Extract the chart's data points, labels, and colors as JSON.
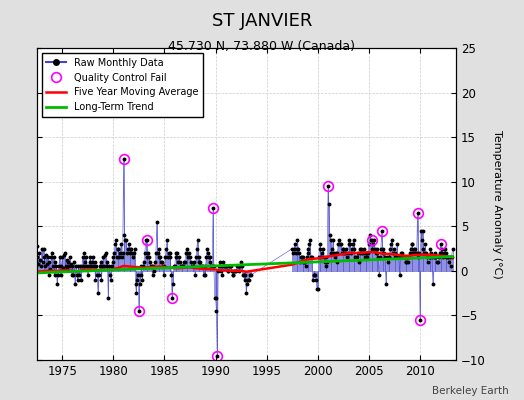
{
  "title": "ST JANVIER",
  "subtitle": "45.730 N, 73.880 W (Canada)",
  "ylabel": "Temperature Anomaly (°C)",
  "credit": "Berkeley Earth",
  "xlim": [
    1972.5,
    2013.5
  ],
  "ylim": [
    -10,
    25
  ],
  "yticks_left": [
    -10,
    -5,
    0,
    5,
    10,
    15,
    20,
    25
  ],
  "yticks_right": [
    -10,
    -5,
    0,
    5,
    10,
    15,
    20,
    25
  ],
  "xticks": [
    1975,
    1980,
    1985,
    1990,
    1995,
    2000,
    2005,
    2010
  ],
  "background_color": "#e0e0e0",
  "plot_bg_color": "#ffffff",
  "raw_color": "#4444cc",
  "raw_marker_color": "#000000",
  "qc_color": "#ff00ff",
  "ma_color": "#ff0000",
  "trend_color": "#00bb00",
  "grid_color": "#cccccc",
  "raw_monthly": [
    [
      1972.08,
      0.3
    ],
    [
      1972.17,
      1.8
    ],
    [
      1972.25,
      0.5
    ],
    [
      1972.33,
      2.2
    ],
    [
      1972.42,
      1.0
    ],
    [
      1972.5,
      2.8
    ],
    [
      1972.58,
      1.5
    ],
    [
      1972.67,
      0.8
    ],
    [
      1972.75,
      2.0
    ],
    [
      1972.83,
      1.2
    ],
    [
      1972.92,
      0.5
    ],
    [
      1973.0,
      2.5
    ],
    [
      1973.08,
      1.0
    ],
    [
      1973.17,
      2.5
    ],
    [
      1973.25,
      1.5
    ],
    [
      1973.33,
      0.5
    ],
    [
      1973.42,
      1.8
    ],
    [
      1973.5,
      0.8
    ],
    [
      1973.58,
      1.5
    ],
    [
      1973.67,
      -0.5
    ],
    [
      1973.75,
      1.0
    ],
    [
      1973.83,
      0.2
    ],
    [
      1973.92,
      1.5
    ],
    [
      1974.0,
      2.0
    ],
    [
      1974.08,
      0.5
    ],
    [
      1974.17,
      1.5
    ],
    [
      1974.25,
      -0.5
    ],
    [
      1974.33,
      1.0
    ],
    [
      1974.42,
      0.5
    ],
    [
      1974.5,
      -1.5
    ],
    [
      1974.58,
      -0.5
    ],
    [
      1974.67,
      0.5
    ],
    [
      1974.75,
      1.5
    ],
    [
      1974.83,
      -0.5
    ],
    [
      1974.92,
      0.5
    ],
    [
      1975.0,
      1.5
    ],
    [
      1975.08,
      0.3
    ],
    [
      1975.17,
      1.8
    ],
    [
      1975.25,
      2.0
    ],
    [
      1975.33,
      0.5
    ],
    [
      1975.42,
      1.2
    ],
    [
      1975.5,
      0.2
    ],
    [
      1975.58,
      1.0
    ],
    [
      1975.67,
      0.5
    ],
    [
      1975.75,
      1.5
    ],
    [
      1975.83,
      0.8
    ],
    [
      1975.92,
      -0.5
    ],
    [
      1976.0,
      0.5
    ],
    [
      1976.08,
      -0.5
    ],
    [
      1976.17,
      1.0
    ],
    [
      1976.25,
      -1.5
    ],
    [
      1976.33,
      0.5
    ],
    [
      1976.42,
      -0.5
    ],
    [
      1976.5,
      -1.0
    ],
    [
      1976.58,
      0.5
    ],
    [
      1976.67,
      -0.5
    ],
    [
      1976.75,
      0.5
    ],
    [
      1976.83,
      -1.0
    ],
    [
      1976.92,
      0.5
    ],
    [
      1977.0,
      1.5
    ],
    [
      1977.08,
      0.5
    ],
    [
      1977.17,
      2.0
    ],
    [
      1977.25,
      1.0
    ],
    [
      1977.33,
      1.5
    ],
    [
      1977.42,
      0.5
    ],
    [
      1977.5,
      -0.5
    ],
    [
      1977.58,
      0.5
    ],
    [
      1977.67,
      1.0
    ],
    [
      1977.75,
      1.5
    ],
    [
      1977.83,
      0.5
    ],
    [
      1977.92,
      1.0
    ],
    [
      1978.0,
      1.5
    ],
    [
      1978.08,
      0.5
    ],
    [
      1978.17,
      1.0
    ],
    [
      1978.25,
      -1.0
    ],
    [
      1978.33,
      0.5
    ],
    [
      1978.42,
      -0.5
    ],
    [
      1978.5,
      -2.5
    ],
    [
      1978.58,
      -0.5
    ],
    [
      1978.67,
      0.5
    ],
    [
      1978.75,
      1.0
    ],
    [
      1978.83,
      -1.0
    ],
    [
      1978.92,
      0.5
    ],
    [
      1979.0,
      1.5
    ],
    [
      1979.08,
      0.5
    ],
    [
      1979.17,
      1.8
    ],
    [
      1979.25,
      2.0
    ],
    [
      1979.33,
      0.5
    ],
    [
      1979.42,
      1.0
    ],
    [
      1979.5,
      -3.0
    ],
    [
      1979.58,
      0.5
    ],
    [
      1979.67,
      -0.5
    ],
    [
      1979.75,
      -1.0
    ],
    [
      1979.83,
      0.5
    ],
    [
      1979.92,
      1.0
    ],
    [
      1980.0,
      1.5
    ],
    [
      1980.08,
      2.0
    ],
    [
      1980.17,
      3.0
    ],
    [
      1980.25,
      3.5
    ],
    [
      1980.33,
      1.5
    ],
    [
      1980.42,
      2.5
    ],
    [
      1980.5,
      2.5
    ],
    [
      1980.58,
      1.5
    ],
    [
      1980.67,
      2.0
    ],
    [
      1980.75,
      3.0
    ],
    [
      1980.83,
      1.5
    ],
    [
      1980.92,
      2.0
    ],
    [
      1981.0,
      12.5
    ],
    [
      1981.08,
      4.0
    ],
    [
      1981.17,
      3.5
    ],
    [
      1981.25,
      3.5
    ],
    [
      1981.33,
      2.0
    ],
    [
      1981.42,
      2.5
    ],
    [
      1981.5,
      3.0
    ],
    [
      1981.58,
      2.5
    ],
    [
      1981.67,
      2.0
    ],
    [
      1981.75,
      2.5
    ],
    [
      1981.83,
      2.0
    ],
    [
      1981.92,
      1.5
    ],
    [
      1982.0,
      2.0
    ],
    [
      1982.08,
      2.5
    ],
    [
      1982.17,
      -1.5
    ],
    [
      1982.25,
      -2.5
    ],
    [
      1982.33,
      -1.0
    ],
    [
      1982.42,
      -0.5
    ],
    [
      1982.5,
      -4.5
    ],
    [
      1982.58,
      -1.5
    ],
    [
      1982.67,
      -0.5
    ],
    [
      1982.75,
      0.5
    ],
    [
      1982.83,
      -1.0
    ],
    [
      1982.92,
      0.5
    ],
    [
      1983.0,
      1.0
    ],
    [
      1983.08,
      2.0
    ],
    [
      1983.17,
      3.5
    ],
    [
      1983.25,
      3.5
    ],
    [
      1983.33,
      1.5
    ],
    [
      1983.42,
      2.0
    ],
    [
      1983.5,
      1.5
    ],
    [
      1983.58,
      1.0
    ],
    [
      1983.67,
      0.5
    ],
    [
      1983.75,
      0.5
    ],
    [
      1983.83,
      -0.5
    ],
    [
      1983.92,
      0.5
    ],
    [
      1984.0,
      0.0
    ],
    [
      1984.08,
      1.0
    ],
    [
      1984.17,
      2.0
    ],
    [
      1984.25,
      5.5
    ],
    [
      1984.33,
      2.0
    ],
    [
      1984.42,
      1.5
    ],
    [
      1984.5,
      2.5
    ],
    [
      1984.58,
      1.5
    ],
    [
      1984.67,
      1.0
    ],
    [
      1984.75,
      1.0
    ],
    [
      1984.83,
      0.5
    ],
    [
      1984.92,
      -0.5
    ],
    [
      1985.0,
      0.5
    ],
    [
      1985.08,
      1.5
    ],
    [
      1985.17,
      2.5
    ],
    [
      1985.25,
      3.5
    ],
    [
      1985.33,
      1.5
    ],
    [
      1985.42,
      2.0
    ],
    [
      1985.5,
      2.0
    ],
    [
      1985.58,
      1.5
    ],
    [
      1985.67,
      -0.5
    ],
    [
      1985.75,
      -3.0
    ],
    [
      1985.83,
      -1.5
    ],
    [
      1985.92,
      0.5
    ],
    [
      1986.0,
      0.5
    ],
    [
      1986.08,
      1.5
    ],
    [
      1986.17,
      2.0
    ],
    [
      1986.25,
      2.0
    ],
    [
      1986.33,
      1.0
    ],
    [
      1986.42,
      1.5
    ],
    [
      1986.5,
      1.0
    ],
    [
      1986.58,
      0.5
    ],
    [
      1986.67,
      0.5
    ],
    [
      1986.75,
      0.5
    ],
    [
      1986.83,
      0.5
    ],
    [
      1986.92,
      1.0
    ],
    [
      1987.0,
      1.0
    ],
    [
      1987.08,
      2.0
    ],
    [
      1987.17,
      2.5
    ],
    [
      1987.25,
      2.0
    ],
    [
      1987.33,
      1.5
    ],
    [
      1987.42,
      2.0
    ],
    [
      1987.5,
      1.5
    ],
    [
      1987.58,
      1.0
    ],
    [
      1987.67,
      0.5
    ],
    [
      1987.75,
      0.5
    ],
    [
      1987.83,
      0.5
    ],
    [
      1987.92,
      1.0
    ],
    [
      1988.0,
      -0.5
    ],
    [
      1988.08,
      1.5
    ],
    [
      1988.17,
      2.5
    ],
    [
      1988.25,
      3.5
    ],
    [
      1988.33,
      1.0
    ],
    [
      1988.42,
      1.5
    ],
    [
      1988.5,
      1.0
    ],
    [
      1988.58,
      0.5
    ],
    [
      1988.67,
      0.5
    ],
    [
      1988.75,
      0.5
    ],
    [
      1988.83,
      -0.5
    ],
    [
      1988.92,
      0.5
    ],
    [
      1989.0,
      -0.5
    ],
    [
      1989.08,
      1.5
    ],
    [
      1989.17,
      2.5
    ],
    [
      1989.25,
      2.0
    ],
    [
      1989.33,
      1.5
    ],
    [
      1989.42,
      1.5
    ],
    [
      1989.5,
      1.0
    ],
    [
      1989.58,
      0.5
    ],
    [
      1989.67,
      0.5
    ],
    [
      1989.75,
      7.0
    ],
    [
      1989.83,
      0.5
    ],
    [
      1989.92,
      -3.0
    ],
    [
      1990.0,
      -3.0
    ],
    [
      1990.08,
      -4.5
    ],
    [
      1990.17,
      -9.5
    ],
    [
      1990.25,
      0.0
    ],
    [
      1990.33,
      0.5
    ],
    [
      1990.42,
      1.0
    ],
    [
      1990.5,
      0.0
    ],
    [
      1990.58,
      0.5
    ],
    [
      1990.67,
      -0.5
    ],
    [
      1990.75,
      1.0
    ],
    [
      1990.83,
      0.5
    ],
    [
      1990.92,
      0.5
    ],
    [
      1991.0,
      0.5
    ],
    [
      1991.08,
      0.5
    ],
    [
      1991.17,
      0.0
    ],
    [
      1991.25,
      0.0
    ],
    [
      1991.33,
      0.5
    ],
    [
      1991.42,
      0.5
    ],
    [
      1991.5,
      0.5
    ],
    [
      1991.58,
      0.0
    ],
    [
      1991.67,
      -0.5
    ],
    [
      1991.75,
      -0.5
    ],
    [
      1991.83,
      0.0
    ],
    [
      1991.92,
      0.0
    ],
    [
      1992.0,
      0.0
    ],
    [
      1992.08,
      0.5
    ],
    [
      1992.17,
      0.5
    ],
    [
      1992.25,
      0.5
    ],
    [
      1992.33,
      0.0
    ],
    [
      1992.42,
      0.5
    ],
    [
      1992.5,
      1.0
    ],
    [
      1992.58,
      0.5
    ],
    [
      1992.67,
      -0.5
    ],
    [
      1992.75,
      -0.5
    ],
    [
      1992.83,
      -1.0
    ],
    [
      1992.92,
      -0.5
    ],
    [
      1993.0,
      -2.5
    ],
    [
      1993.08,
      -1.5
    ],
    [
      1993.17,
      -1.0
    ],
    [
      1993.25,
      -1.0
    ],
    [
      1993.33,
      -0.5
    ],
    [
      1993.42,
      -0.5
    ],
    [
      1997.5,
      2.5
    ],
    [
      1997.58,
      2.0
    ],
    [
      1997.67,
      2.5
    ],
    [
      1997.75,
      3.0
    ],
    [
      1997.83,
      2.0
    ],
    [
      1997.92,
      2.5
    ],
    [
      1998.0,
      3.5
    ],
    [
      1998.08,
      2.5
    ],
    [
      1998.17,
      2.0
    ],
    [
      1998.25,
      1.0
    ],
    [
      1998.33,
      1.5
    ],
    [
      1998.42,
      1.5
    ],
    [
      1998.5,
      1.5
    ],
    [
      1998.58,
      1.0
    ],
    [
      1998.67,
      1.0
    ],
    [
      1998.75,
      1.0
    ],
    [
      1998.83,
      0.5
    ],
    [
      1998.92,
      1.5
    ],
    [
      1999.0,
      2.0
    ],
    [
      1999.08,
      2.5
    ],
    [
      1999.17,
      3.0
    ],
    [
      1999.25,
      3.5
    ],
    [
      1999.33,
      1.5
    ],
    [
      1999.42,
      1.5
    ],
    [
      1999.5,
      -1.0
    ],
    [
      1999.58,
      -0.5
    ],
    [
      1999.67,
      -0.5
    ],
    [
      1999.75,
      -0.5
    ],
    [
      1999.83,
      -1.0
    ],
    [
      1999.92,
      -2.0
    ],
    [
      2000.0,
      -2.0
    ],
    [
      2000.08,
      1.5
    ],
    [
      2000.17,
      2.5
    ],
    [
      2000.25,
      3.0
    ],
    [
      2000.33,
      1.5
    ],
    [
      2000.42,
      2.0
    ],
    [
      2000.5,
      2.5
    ],
    [
      2000.58,
      1.5
    ],
    [
      2000.67,
      1.0
    ],
    [
      2000.75,
      1.5
    ],
    [
      2000.83,
      0.5
    ],
    [
      2000.92,
      1.0
    ],
    [
      2001.0,
      9.5
    ],
    [
      2001.08,
      7.5
    ],
    [
      2001.17,
      4.0
    ],
    [
      2001.25,
      3.5
    ],
    [
      2001.33,
      2.0
    ],
    [
      2001.42,
      2.5
    ],
    [
      2001.5,
      3.5
    ],
    [
      2001.58,
      2.0
    ],
    [
      2001.67,
      1.5
    ],
    [
      2001.75,
      2.0
    ],
    [
      2001.83,
      1.0
    ],
    [
      2001.92,
      2.0
    ],
    [
      2002.0,
      3.0
    ],
    [
      2002.08,
      3.5
    ],
    [
      2002.17,
      3.0
    ],
    [
      2002.25,
      3.0
    ],
    [
      2002.33,
      2.0
    ],
    [
      2002.42,
      2.5
    ],
    [
      2002.5,
      2.5
    ],
    [
      2002.58,
      2.0
    ],
    [
      2002.67,
      2.0
    ],
    [
      2002.75,
      2.5
    ],
    [
      2002.83,
      1.5
    ],
    [
      2002.92,
      2.0
    ],
    [
      2003.0,
      3.0
    ],
    [
      2003.08,
      3.5
    ],
    [
      2003.17,
      3.0
    ],
    [
      2003.25,
      2.0
    ],
    [
      2003.33,
      2.5
    ],
    [
      2003.42,
      3.0
    ],
    [
      2003.5,
      3.5
    ],
    [
      2003.58,
      2.5
    ],
    [
      2003.67,
      1.5
    ],
    [
      2003.75,
      1.5
    ],
    [
      2003.83,
      1.5
    ],
    [
      2003.92,
      2.0
    ],
    [
      2004.0,
      1.0
    ],
    [
      2004.08,
      2.0
    ],
    [
      2004.17,
      2.5
    ],
    [
      2004.25,
      2.5
    ],
    [
      2004.33,
      2.0
    ],
    [
      2004.42,
      2.0
    ],
    [
      2004.5,
      2.5
    ],
    [
      2004.58,
      1.5
    ],
    [
      2004.67,
      1.5
    ],
    [
      2004.75,
      2.0
    ],
    [
      2004.83,
      1.5
    ],
    [
      2004.92,
      2.0
    ],
    [
      2005.0,
      3.0
    ],
    [
      2005.08,
      4.0
    ],
    [
      2005.17,
      3.5
    ],
    [
      2005.25,
      3.5
    ],
    [
      2005.33,
      2.5
    ],
    [
      2005.42,
      3.0
    ],
    [
      2005.5,
      3.5
    ],
    [
      2005.58,
      2.5
    ],
    [
      2005.67,
      2.0
    ],
    [
      2005.75,
      2.5
    ],
    [
      2005.83,
      2.0
    ],
    [
      2005.92,
      1.5
    ],
    [
      2006.0,
      -0.5
    ],
    [
      2006.08,
      1.5
    ],
    [
      2006.17,
      2.5
    ],
    [
      2006.25,
      4.5
    ],
    [
      2006.33,
      2.5
    ],
    [
      2006.42,
      2.0
    ],
    [
      2006.5,
      2.0
    ],
    [
      2006.58,
      1.5
    ],
    [
      2006.67,
      -1.5
    ],
    [
      2006.75,
      1.5
    ],
    [
      2006.83,
      1.0
    ],
    [
      2006.92,
      1.5
    ],
    [
      2007.0,
      1.5
    ],
    [
      2007.08,
      2.5
    ],
    [
      2007.17,
      3.0
    ],
    [
      2007.25,
      3.5
    ],
    [
      2007.33,
      2.0
    ],
    [
      2007.42,
      2.5
    ],
    [
      2007.5,
      2.0
    ],
    [
      2007.58,
      1.5
    ],
    [
      2007.67,
      1.5
    ],
    [
      2007.75,
      3.0
    ],
    [
      2007.83,
      1.5
    ],
    [
      2007.92,
      1.5
    ],
    [
      2008.0,
      -0.5
    ],
    [
      2008.08,
      1.5
    ],
    [
      2008.17,
      2.0
    ],
    [
      2008.25,
      2.0
    ],
    [
      2008.33,
      1.5
    ],
    [
      2008.42,
      1.5
    ],
    [
      2008.5,
      1.5
    ],
    [
      2008.58,
      1.0
    ],
    [
      2008.67,
      1.0
    ],
    [
      2008.75,
      1.5
    ],
    [
      2008.83,
      1.0
    ],
    [
      2008.92,
      1.5
    ],
    [
      2009.0,
      2.0
    ],
    [
      2009.08,
      2.5
    ],
    [
      2009.17,
      3.0
    ],
    [
      2009.25,
      3.0
    ],
    [
      2009.33,
      2.0
    ],
    [
      2009.42,
      2.5
    ],
    [
      2009.5,
      2.5
    ],
    [
      2009.58,
      2.0
    ],
    [
      2009.67,
      2.0
    ],
    [
      2009.75,
      6.5
    ],
    [
      2009.83,
      1.5
    ],
    [
      2009.92,
      2.0
    ],
    [
      2010.0,
      -5.5
    ],
    [
      2010.08,
      4.5
    ],
    [
      2010.17,
      3.5
    ],
    [
      2010.25,
      4.5
    ],
    [
      2010.33,
      2.5
    ],
    [
      2010.42,
      2.0
    ],
    [
      2010.5,
      3.0
    ],
    [
      2010.58,
      2.0
    ],
    [
      2010.67,
      1.5
    ],
    [
      2010.75,
      1.0
    ],
    [
      2010.83,
      1.5
    ],
    [
      2010.92,
      1.5
    ],
    [
      2011.0,
      2.5
    ],
    [
      2011.08,
      2.0
    ],
    [
      2011.17,
      1.5
    ],
    [
      2011.25,
      -1.5
    ],
    [
      2011.33,
      1.5
    ],
    [
      2011.42,
      1.5
    ],
    [
      2011.5,
      2.0
    ],
    [
      2011.58,
      1.5
    ],
    [
      2011.67,
      1.0
    ],
    [
      2011.75,
      1.0
    ],
    [
      2011.83,
      1.5
    ],
    [
      2011.92,
      2.0
    ],
    [
      2012.0,
      3.0
    ],
    [
      2012.08,
      2.0
    ],
    [
      2012.17,
      2.5
    ],
    [
      2012.25,
      1.5
    ],
    [
      2012.33,
      2.0
    ],
    [
      2012.42,
      2.5
    ],
    [
      2012.5,
      2.0
    ],
    [
      2012.58,
      1.5
    ],
    [
      2012.67,
      1.5
    ],
    [
      2012.75,
      1.5
    ],
    [
      2012.83,
      1.0
    ],
    [
      2012.92,
      1.5
    ],
    [
      2013.0,
      0.5
    ],
    [
      2013.08,
      1.5
    ],
    [
      2013.17,
      2.5
    ]
  ],
  "qc_fail": [
    [
      1981.0,
      12.5
    ],
    [
      1982.5,
      -4.5
    ],
    [
      1983.25,
      3.5
    ],
    [
      1985.75,
      -3.0
    ],
    [
      1989.75,
      7.0
    ],
    [
      1990.17,
      -9.5
    ],
    [
      2001.0,
      9.5
    ],
    [
      2005.25,
      3.5
    ],
    [
      2006.25,
      4.5
    ],
    [
      2009.75,
      6.5
    ],
    [
      2010.0,
      -5.5
    ],
    [
      2012.0,
      3.0
    ]
  ],
  "moving_avg_x": [
    1972.08,
    1972.5,
    1973.0,
    1973.5,
    1974.0,
    1974.5,
    1975.0,
    1975.5,
    1976.0,
    1976.5,
    1977.0,
    1977.5,
    1978.0,
    1978.5,
    1979.0,
    1979.5,
    1980.0,
    1980.5,
    1981.0,
    1981.5,
    1982.0,
    1982.5,
    1983.0,
    1983.5,
    1984.0,
    1984.5,
    1985.0,
    1985.5,
    1986.0,
    1986.5,
    1987.0,
    1987.5,
    1988.0,
    1988.5,
    1989.0,
    1989.5,
    1990.0,
    1990.5,
    1991.0,
    1991.5,
    1992.0,
    1992.5,
    1993.0,
    1997.5,
    1998.0,
    1998.5,
    1999.0,
    1999.5,
    2000.0,
    2000.5,
    2001.0,
    2001.5,
    2002.0,
    2002.5,
    2003.0,
    2003.5,
    2004.0,
    2004.5,
    2005.0,
    2005.5,
    2006.0,
    2006.5,
    2007.0,
    2007.5,
    2008.0,
    2008.5,
    2009.0,
    2009.5,
    2010.0,
    2010.5,
    2011.0,
    2011.5,
    2012.0,
    2012.5,
    2013.17
  ],
  "moving_avg_y": [
    -0.1,
    -0.05,
    -0.05,
    0.0,
    0.0,
    0.0,
    0.05,
    0.05,
    0.0,
    -0.05,
    0.1,
    0.15,
    0.15,
    0.1,
    0.1,
    0.1,
    0.2,
    0.35,
    0.55,
    0.5,
    0.45,
    0.4,
    0.35,
    0.4,
    0.45,
    0.5,
    0.45,
    0.35,
    0.3,
    0.3,
    0.35,
    0.4,
    0.3,
    0.25,
    0.2,
    0.2,
    0.15,
    0.05,
    0.05,
    0.0,
    0.0,
    0.0,
    -0.1,
    0.7,
    0.9,
    1.1,
    1.3,
    1.35,
    1.4,
    1.5,
    1.6,
    1.7,
    1.8,
    1.9,
    2.0,
    2.0,
    2.0,
    2.05,
    2.1,
    2.1,
    2.0,
    1.9,
    1.9,
    1.85,
    1.75,
    1.7,
    1.7,
    1.8,
    1.8,
    1.8,
    1.8,
    1.75,
    1.7,
    1.65,
    1.5
  ],
  "trend_x": [
    1972.08,
    2013.17
  ],
  "trend_y": [
    -0.25,
    1.6
  ]
}
